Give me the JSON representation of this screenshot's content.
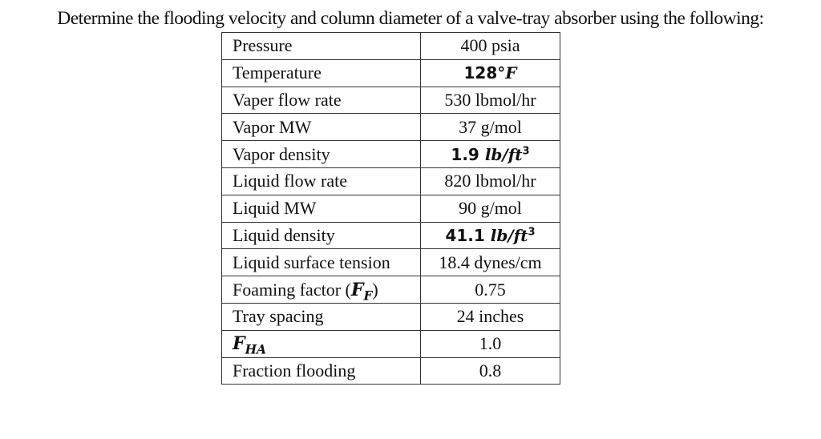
{
  "document": {
    "title": "Determine the flooding velocity and column diameter of a valve-tray absorber using the following:",
    "table": {
      "rows": [
        {
          "label": "Pressure",
          "value": "400 psia"
        },
        {
          "label": "Temperature",
          "value": "128°F",
          "value_num": "128°",
          "value_unit": "F"
        },
        {
          "label": "Vaper flow rate",
          "value": "530 lbmol/hr"
        },
        {
          "label": "Vapor MW",
          "value": "37 g/mol"
        },
        {
          "label": "Vapor density",
          "value": "1.9 lb/ft3",
          "value_num": "1.9",
          "value_unit": "lb/ft",
          "value_exp": "3"
        },
        {
          "label": "Liquid flow rate",
          "value": "820 lbmol/hr"
        },
        {
          "label": "Liquid MW",
          "value": "90 g/mol"
        },
        {
          "label": "Liquid density",
          "value": "41.1 lb/ft3",
          "value_num": "41.1",
          "value_unit": "lb/ft",
          "value_exp": "3"
        },
        {
          "label": "Liquid surface tension",
          "value": "18.4 dynes/cm"
        },
        {
          "label": "Foaming factor (FF)",
          "label_text": "Foaming factor (",
          "label_sym": "F",
          "label_sub": "F",
          "label_end": ")",
          "value": "0.75"
        },
        {
          "label": "Tray spacing",
          "value": "24 inches"
        },
        {
          "label": "FHA",
          "label_sym": "F",
          "label_sub": "HA",
          "value": "1.0"
        },
        {
          "label": "Fraction flooding",
          "value": "0.8"
        }
      ]
    }
  }
}
